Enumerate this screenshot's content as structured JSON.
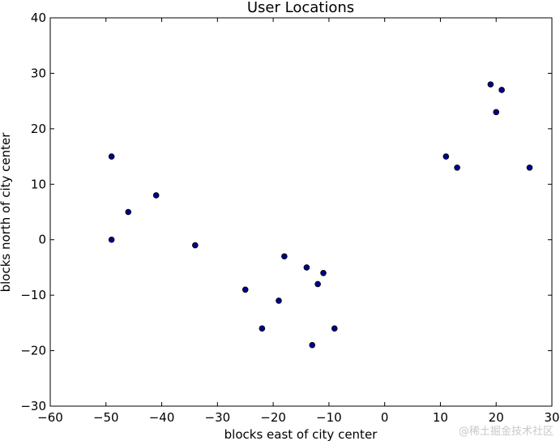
{
  "chart_data": {
    "type": "scatter",
    "title": "User Locations",
    "xlabel": "blocks east of city center",
    "ylabel": "blocks north of city center",
    "xlim": [
      -60,
      30
    ],
    "ylim": [
      -30,
      40
    ],
    "xticks": [
      -60,
      -50,
      -40,
      -30,
      -20,
      -10,
      0,
      10,
      20,
      30
    ],
    "yticks": [
      -30,
      -20,
      -10,
      0,
      10,
      20,
      30,
      40
    ],
    "grid": false,
    "marker_fill": "#00008b",
    "marker_edge": "#000000",
    "points": [
      {
        "x": -49,
        "y": 15
      },
      {
        "x": -46,
        "y": 5
      },
      {
        "x": -41,
        "y": 8
      },
      {
        "x": -49,
        "y": 0
      },
      {
        "x": -34,
        "y": -1
      },
      {
        "x": -18,
        "y": -3
      },
      {
        "x": -14,
        "y": -5
      },
      {
        "x": -11,
        "y": -6
      },
      {
        "x": -12,
        "y": -8
      },
      {
        "x": -25,
        "y": -9
      },
      {
        "x": -19,
        "y": -11
      },
      {
        "x": -22,
        "y": -16
      },
      {
        "x": -9,
        "y": -16
      },
      {
        "x": -13,
        "y": -19
      },
      {
        "x": 19,
        "y": 28
      },
      {
        "x": 21,
        "y": 27
      },
      {
        "x": 20,
        "y": 23
      },
      {
        "x": 11,
        "y": 15
      },
      {
        "x": 13,
        "y": 13
      },
      {
        "x": 26,
        "y": 13
      }
    ]
  },
  "watermark": "@稀土掘金技术社区"
}
